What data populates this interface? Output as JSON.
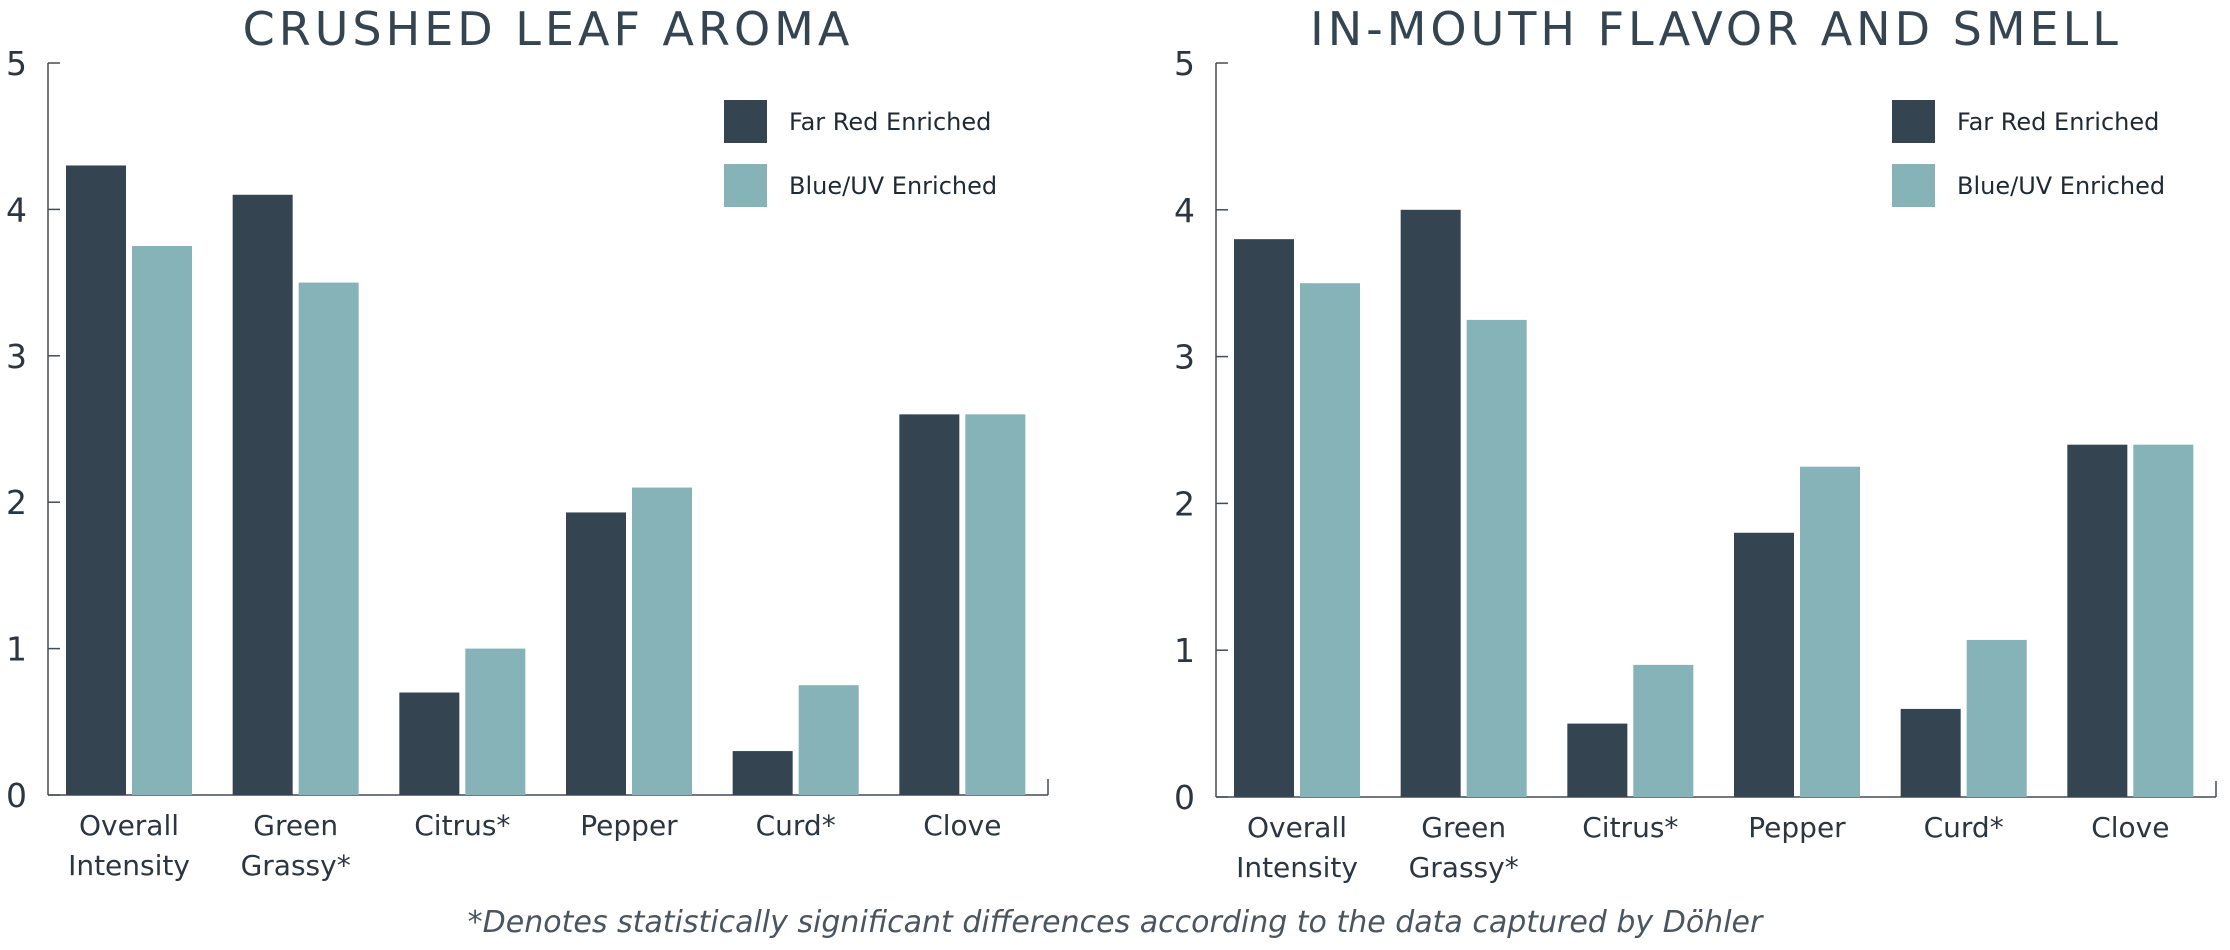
{
  "chart_data": [
    {
      "type": "bar",
      "title": "CRUSHED LEAF AROMA",
      "categories": [
        [
          "Overall",
          "Intensity"
        ],
        [
          "Green",
          "Grassy*"
        ],
        [
          "Citrus*"
        ],
        [
          "Pepper"
        ],
        [
          "Curd*"
        ],
        [
          "Clove"
        ]
      ],
      "series": [
        {
          "name": "Far Red Enriched",
          "color": "#344451",
          "values": [
            4.3,
            4.1,
            0.7,
            1.93,
            0.3,
            2.6
          ]
        },
        {
          "name": "Blue/UV Enriched",
          "color": "#86b3b8",
          "values": [
            3.75,
            3.5,
            1.0,
            2.1,
            0.75,
            2.6
          ]
        }
      ],
      "ylim": [
        0,
        5
      ],
      "yticks": [
        0,
        1,
        2,
        3,
        4,
        5
      ],
      "xlabel": "",
      "ylabel": "",
      "legend": "top-right",
      "grid": false
    },
    {
      "type": "bar",
      "title": "IN-MOUTH FLAVOR AND SMELL",
      "categories": [
        [
          "Overall",
          "Intensity"
        ],
        [
          "Green",
          "Grassy*"
        ],
        [
          "Citrus*"
        ],
        [
          "Pepper"
        ],
        [
          "Curd*"
        ],
        [
          "Clove"
        ]
      ],
      "series": [
        {
          "name": "Far Red Enriched",
          "color": "#344451",
          "values": [
            3.8,
            4.0,
            0.5,
            1.8,
            0.6,
            2.4
          ]
        },
        {
          "name": "Blue/UV Enriched",
          "color": "#86b3b8",
          "values": [
            3.5,
            3.25,
            0.9,
            2.25,
            1.07,
            2.4
          ]
        }
      ],
      "ylim": [
        0,
        5
      ],
      "yticks": [
        0,
        1,
        2,
        3,
        4,
        5
      ],
      "xlabel": "",
      "ylabel": "",
      "legend": "top-right",
      "grid": false
    }
  ],
  "footnote": "*Denotes statistically significant differences according to the data captured by Döhler"
}
